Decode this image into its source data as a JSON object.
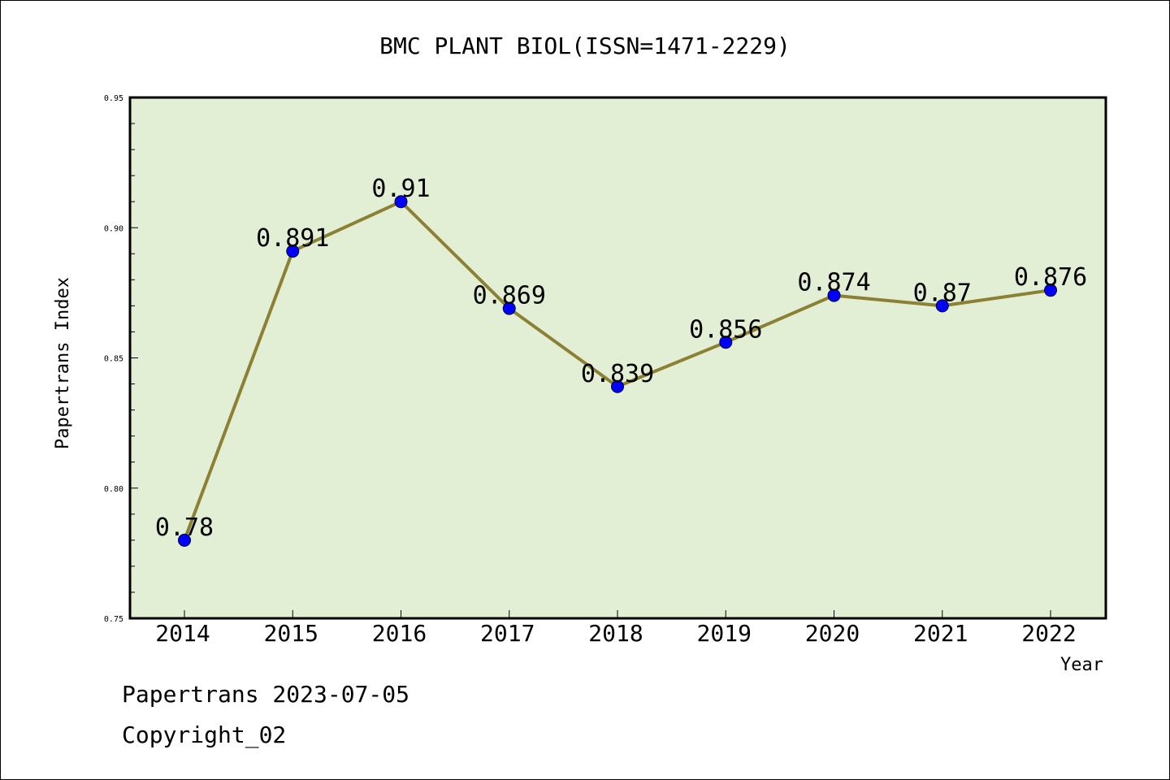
{
  "chart_data": {
    "type": "line",
    "title": "BMC PLANT BIOL(ISSN=1471-2229)",
    "xlabel": "Year",
    "ylabel": "Papertrans Index",
    "categories": [
      "2014",
      "2015",
      "2016",
      "2017",
      "2018",
      "2019",
      "2020",
      "2021",
      "2022"
    ],
    "series": [
      {
        "values": [
          0.78,
          0.891,
          0.91,
          0.869,
          0.839,
          0.856,
          0.874,
          0.87,
          0.876
        ],
        "labels": [
          "0.78",
          "0.891",
          "0.91",
          "0.869",
          "0.839",
          "0.856",
          "0.874",
          "0.87",
          "0.876"
        ],
        "line_color": "#8b8033",
        "marker_color": "#0000ff"
      }
    ],
    "ylim": [
      0.75,
      0.95
    ],
    "yticks": [
      "0.75",
      "0.80",
      "0.85",
      "0.90",
      "0.95"
    ],
    "grid": false,
    "plot_background": "#e2efd4"
  },
  "footer": {
    "line1": "Papertrans 2023-07-05",
    "line2": "Copyright_02"
  }
}
